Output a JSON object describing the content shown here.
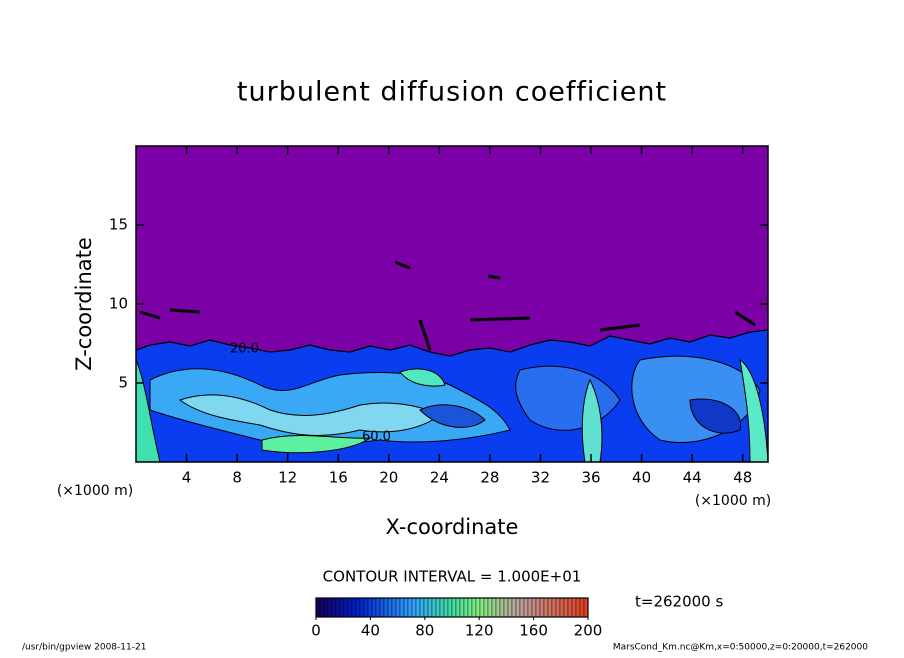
{
  "chart_data": {
    "type": "contour",
    "title": "turbulent diffusion coefficient",
    "xlabel": "X-coordinate",
    "ylabel": "Z-coordinate",
    "x_unit": "(×1000 m)",
    "y_unit": "(×1000 m)",
    "xlim": [
      0,
      50
    ],
    "ylim": [
      0,
      20
    ],
    "xticks": [
      4,
      8,
      12,
      16,
      20,
      24,
      28,
      32,
      36,
      40,
      44,
      48
    ],
    "yticks": [
      5,
      10,
      15
    ],
    "contour_labels": [
      "20.0",
      "60.0"
    ],
    "contour_interval": "CONTOUR INTERVAL = 1.000E+01",
    "time_label": "t=262000 s",
    "colorbar": {
      "lim": [
        0,
        200
      ],
      "ticks": [
        0,
        40,
        80,
        120,
        160,
        200
      ]
    },
    "footer_left": "/usr/bin/gpview   2008-11-21",
    "footer_right": "MarsCond_Km.nc@Km,x=0:50000,z=0:20000,t=262000"
  }
}
